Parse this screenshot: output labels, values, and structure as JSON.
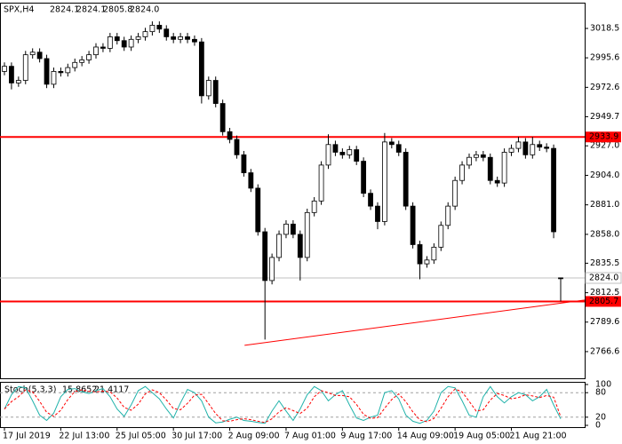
{
  "chart_data": [
    {
      "type": "candlestick",
      "symbol": "SPX,H4",
      "categories": [
        "17 Jul 2019",
        null,
        null,
        null,
        null,
        null,
        null,
        null,
        "22 Jul 13:00",
        null,
        null,
        null,
        null,
        null,
        null,
        null,
        "25 Jul 05:00",
        null,
        null,
        null,
        null,
        null,
        null,
        null,
        "30 Jul 17:00",
        null,
        null,
        null,
        null,
        null,
        null,
        null,
        "2 Aug 09:00",
        null,
        null,
        null,
        null,
        null,
        null,
        null,
        "7 Aug 01:00",
        null,
        null,
        null,
        null,
        null,
        null,
        null,
        "9 Aug 17:00",
        null,
        null,
        null,
        null,
        null,
        null,
        null,
        "14 Aug 09:00",
        null,
        null,
        null,
        null,
        null,
        null,
        null,
        "19 Aug 05:00",
        null,
        null,
        null,
        null,
        null,
        null,
        null,
        "21 Aug 21:00",
        null,
        null,
        null,
        null,
        null,
        null,
        null
      ],
      "open": [
        2985,
        2989,
        2976,
        2978,
        2998,
        3000,
        2995,
        2975,
        2985,
        2984,
        2988,
        2992,
        2994,
        2998,
        3004,
        3003,
        3012,
        3009,
        3004,
        3010,
        3012,
        3016,
        3021,
        3018,
        3012,
        3010,
        3012,
        3010,
        3008,
        2966,
        2978,
        2960,
        2938,
        2932,
        2920,
        2906,
        2894,
        2860,
        2822,
        2840,
        2858,
        2866,
        2858,
        2840,
        2875,
        2884,
        2912,
        2928,
        2922,
        2920,
        2924,
        2915,
        2890,
        2880,
        2868,
        2930,
        2928,
        2922,
        2880,
        2850,
        2835,
        2838,
        2848,
        2865,
        2880,
        2900,
        2912,
        2918,
        2920,
        2918,
        2900,
        2898,
        2922,
        2925,
        2930,
        2920,
        2928,
        2926,
        2925,
        2824.1
      ],
      "high": [
        2992,
        2992,
        2981,
        3001,
        3003,
        3003,
        2998,
        2988,
        2988,
        2991,
        2995,
        2997,
        3001,
        3007,
        3007,
        3015,
        3015,
        3012,
        3013,
        3015,
        3019,
        3024,
        3024,
        3021,
        3015,
        3015,
        3015,
        3013,
        3011,
        2981,
        2981,
        2963,
        2941,
        2935,
        2923,
        2909,
        2897,
        2863,
        2843,
        2861,
        2869,
        2869,
        2861,
        2878,
        2887,
        2915,
        2936,
        2931,
        2925,
        2927,
        2927,
        2918,
        2893,
        2883,
        2937,
        2933,
        2931,
        2925,
        2883,
        2853,
        2841,
        2851,
        2868,
        2883,
        2903,
        2915,
        2921,
        2923,
        2923,
        2921,
        2903,
        2925,
        2928,
        2934,
        2933,
        2934,
        2931,
        2929,
        2928,
        2824.1
      ],
      "low": [
        2982,
        2971,
        2973,
        2975,
        2995,
        2992,
        2972,
        2972,
        2981,
        2981,
        2985,
        2989,
        2991,
        2995,
        3000,
        3000,
        3006,
        3001,
        3001,
        3007,
        3009,
        3013,
        3015,
        3009,
        3007,
        3007,
        3007,
        3005,
        2960,
        2963,
        2957,
        2935,
        2929,
        2917,
        2903,
        2891,
        2857,
        2776,
        2819,
        2837,
        2855,
        2855,
        2822,
        2837,
        2872,
        2881,
        2909,
        2919,
        2917,
        2917,
        2912,
        2887,
        2877,
        2862,
        2865,
        2925,
        2919,
        2877,
        2847,
        2823,
        2832,
        2835,
        2845,
        2862,
        2877,
        2897,
        2909,
        2915,
        2915,
        2897,
        2895,
        2895,
        2919,
        2922,
        2917,
        2917,
        2923,
        2922,
        2855,
        2805.8
      ],
      "close": [
        2989,
        2976,
        2978,
        2998,
        3000,
        2995,
        2975,
        2985,
        2984,
        2988,
        2992,
        2994,
        2998,
        3004,
        3003,
        3012,
        3009,
        3004,
        3010,
        3012,
        3016,
        3021,
        3018,
        3012,
        3010,
        3012,
        3010,
        3008,
        2966,
        2978,
        2960,
        2938,
        2932,
        2920,
        2906,
        2894,
        2860,
        2822,
        2840,
        2858,
        2866,
        2858,
        2840,
        2875,
        2884,
        2912,
        2928,
        2922,
        2920,
        2924,
        2915,
        2890,
        2880,
        2868,
        2930,
        2928,
        2922,
        2880,
        2850,
        2835,
        2838,
        2848,
        2865,
        2880,
        2900,
        2912,
        2918,
        2920,
        2918,
        2900,
        2898,
        2922,
        2925,
        2930,
        2920,
        2928,
        2926,
        2925,
        2860,
        2824
      ],
      "ylim": [
        2745.8,
        3037.9
      ],
      "yticks": [
        3018.5,
        2995.6,
        2972.6,
        2949.7,
        {
          "value": 2927,
          "label": "2927.0"
        },
        {
          "value": 2904,
          "label": "2904.0"
        },
        {
          "value": 2881,
          "label": "2881.0"
        },
        {
          "value": 2858,
          "label": "2858.0"
        },
        2835.5,
        2812.5,
        2789.6,
        2766.6
      ],
      "levels": [
        {
          "value": 2933.9,
          "color": "#ff0000"
        },
        {
          "value": 2805.7,
          "color": "#ff0000"
        }
      ],
      "current_price": {
        "value": 2824,
        "label": "2824.0"
      },
      "trendline": {
        "start": [
          34.1,
          2771.5
        ],
        "end": [
          82.4,
          2806.8
        ],
        "color": "#ff0000"
      }
    },
    {
      "type": "line",
      "title": "Stoch(5,3,3)",
      "series": [
        {
          "name": "Main",
          "color": "#20b2aa",
          "values": [
            40,
            75,
            95,
            92,
            60,
            25,
            12,
            30,
            70,
            88,
            90,
            82,
            78,
            85,
            90,
            70,
            40,
            22,
            50,
            85,
            95,
            80,
            65,
            40,
            18,
            55,
            88,
            80,
            60,
            20,
            6,
            8,
            15,
            20,
            12,
            10,
            7,
            5,
            35,
            60,
            35,
            12,
            40,
            75,
            95,
            85,
            60,
            75,
            85,
            50,
            18,
            12,
            20,
            25,
            80,
            85,
            65,
            25,
            10,
            5,
            12,
            35,
            80,
            95,
            92,
            60,
            25,
            20,
            70,
            95,
            70,
            55,
            70,
            80,
            75,
            60,
            70,
            88,
            50,
            15.8652
          ]
        },
        {
          "name": "Signal",
          "color": "#ff0000",
          "dashed": true,
          "values": [
            40,
            58,
            70,
            87,
            82,
            59,
            32,
            22,
            37,
            63,
            83,
            87,
            83,
            82,
            84,
            82,
            67,
            44,
            37,
            52,
            77,
            87,
            80,
            62,
            41,
            38,
            54,
            74,
            76,
            53,
            29,
            11,
            10,
            14,
            16,
            14,
            10,
            7,
            16,
            33,
            43,
            36,
            29,
            42,
            70,
            85,
            80,
            73,
            73,
            70,
            51,
            27,
            17,
            19,
            42,
            63,
            77,
            58,
            33,
            13,
            9,
            17,
            42,
            70,
            89,
            82,
            59,
            35,
            38,
            62,
            78,
            73,
            65,
            68,
            75,
            72,
            68,
            73,
            69,
            21.4117
          ]
        }
      ],
      "ylim": [
        0,
        100
      ],
      "yticks": [
        100,
        80,
        20,
        0
      ],
      "grid_levels": [
        80,
        20
      ]
    }
  ]
}
